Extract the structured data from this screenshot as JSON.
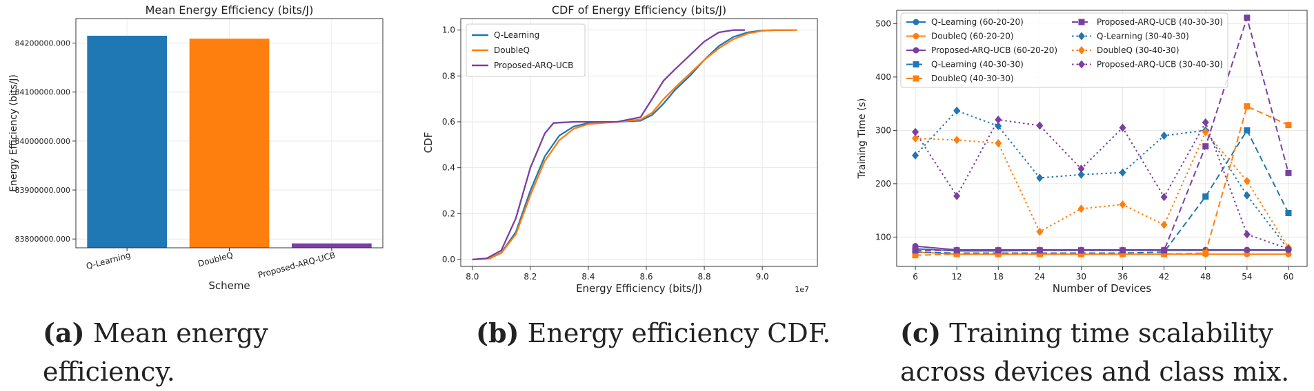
{
  "chart_data": [
    {
      "type": "bar",
      "title": "Mean Energy Efficiency (bits/J)",
      "xlabel": "Scheme",
      "ylabel": "Energy Efficiency (bits/J)",
      "categories": [
        "Q-Learning",
        "DoubleQ",
        "Proposed-ARQ-UCB"
      ],
      "values": [
        84215000,
        84209000,
        83791000
      ],
      "colors": [
        "#1f77b4",
        "#ff7f0e",
        "#7b3fa0"
      ],
      "ylim": [
        83782000,
        84250000
      ],
      "yticks": [
        83800000,
        83900000,
        84000000,
        84100000,
        84200000
      ],
      "ytick_labels": [
        "83800000.000",
        "83900000.000",
        "84000000.000",
        "84100000.000",
        "84200000.000"
      ],
      "grid": true
    },
    {
      "type": "line",
      "title": "CDF of Energy Efficiency (bits/J)",
      "xlabel": "Energy Efficiency (bits/J)",
      "ylabel": "CDF",
      "x_offset_label": "1e7",
      "xlim": [
        7.96,
        9.19
      ],
      "ylim": [
        -0.03,
        1.05
      ],
      "xticks": [
        8.0,
        8.2,
        8.4,
        8.6,
        8.8,
        9.0
      ],
      "xtick_labels": [
        "8.0",
        "8.2",
        "8.4",
        "8.6",
        "8.8",
        "9.0"
      ],
      "yticks": [
        0.0,
        0.2,
        0.4,
        0.6,
        0.8,
        1.0
      ],
      "ytick_labels": [
        "0.0",
        "0.2",
        "0.4",
        "0.6",
        "0.8",
        "1.0"
      ],
      "legend": "top-left",
      "grid": true,
      "series": [
        {
          "name": "Q-Learning",
          "color": "#1f77b4",
          "x": [
            8.0,
            8.06,
            8.1,
            8.15,
            8.2,
            8.25,
            8.3,
            8.35,
            8.4,
            8.5,
            8.58,
            8.62,
            8.66,
            8.7,
            8.75,
            8.8,
            8.85,
            8.9,
            8.95,
            9.0,
            9.05,
            9.1
          ],
          "y": [
            0.0,
            0.005,
            0.03,
            0.12,
            0.3,
            0.45,
            0.54,
            0.58,
            0.595,
            0.6,
            0.605,
            0.63,
            0.68,
            0.74,
            0.8,
            0.87,
            0.93,
            0.97,
            0.99,
            0.998,
            1.0,
            1.0
          ]
        },
        {
          "name": "DoubleQ",
          "color": "#ff7f0e",
          "x": [
            8.0,
            8.06,
            8.1,
            8.15,
            8.2,
            8.25,
            8.3,
            8.35,
            8.4,
            8.5,
            8.58,
            8.62,
            8.66,
            8.7,
            8.75,
            8.8,
            8.85,
            8.9,
            8.95,
            9.0,
            9.05,
            9.12
          ],
          "y": [
            0.0,
            0.005,
            0.028,
            0.11,
            0.28,
            0.43,
            0.52,
            0.57,
            0.59,
            0.6,
            0.61,
            0.64,
            0.7,
            0.75,
            0.81,
            0.87,
            0.92,
            0.96,
            0.985,
            0.997,
            1.0,
            1.0
          ]
        },
        {
          "name": "Proposed-ARQ-UCB",
          "color": "#7b3fa0",
          "x": [
            8.0,
            8.05,
            8.1,
            8.15,
            8.2,
            8.25,
            8.28,
            8.35,
            8.5,
            8.58,
            8.62,
            8.66,
            8.7,
            8.75,
            8.8,
            8.85,
            8.9,
            8.94
          ],
          "y": [
            0.0,
            0.005,
            0.04,
            0.18,
            0.4,
            0.55,
            0.595,
            0.6,
            0.6,
            0.62,
            0.7,
            0.78,
            0.83,
            0.89,
            0.95,
            0.99,
            1.0,
            1.0
          ]
        }
      ]
    },
    {
      "type": "line",
      "xlabel": "Number of Devices",
      "ylabel": "Training Time (s)",
      "x": [
        6,
        12,
        18,
        24,
        30,
        36,
        42,
        48,
        54,
        60
      ],
      "xlim": [
        3.3,
        62.7
      ],
      "ylim": [
        45,
        525
      ],
      "yticks": [
        100,
        200,
        300,
        400,
        500
      ],
      "ytick_labels": [
        "100",
        "200",
        "300",
        "400",
        "500"
      ],
      "xtick_labels": [
        "6",
        "12",
        "18",
        "24",
        "30",
        "36",
        "42",
        "48",
        "54",
        "60"
      ],
      "legend": "top-left, 2 columns",
      "grid": true,
      "series": [
        {
          "name": "Q-Learning (60-20-20)",
          "color": "#1f77b4",
          "style": "solid",
          "marker": "circle",
          "values": [
            78,
            74,
            74,
            75,
            75,
            75,
            75,
            75,
            75,
            75
          ]
        },
        {
          "name": "DoubleQ (60-20-20)",
          "color": "#ff7f0e",
          "style": "solid",
          "marker": "circle",
          "values": [
            72,
            68,
            68,
            68,
            68,
            68,
            68,
            68,
            68,
            68
          ]
        },
        {
          "name": "Proposed-ARQ-UCB (60-20-20)",
          "color": "#7b3fa0",
          "style": "solid",
          "marker": "circle",
          "values": [
            83,
            76,
            76,
            76,
            76,
            76,
            76,
            76,
            76,
            76
          ]
        },
        {
          "name": "Q-Learning (40-30-30)",
          "color": "#1f77b4",
          "style": "dashed",
          "marker": "square",
          "values": [
            72,
            70,
            70,
            70,
            70,
            70,
            72,
            176,
            300,
            145
          ]
        },
        {
          "name": "DoubleQ (40-30-30)",
          "color": "#ff7f0e",
          "style": "dashed",
          "marker": "square",
          "values": [
            66,
            68,
            68,
            68,
            68,
            68,
            68,
            70,
            345,
            310
          ]
        },
        {
          "name": "Proposed-ARQ-UCB (40-30-30)",
          "color": "#7b3fa0",
          "style": "dashed",
          "marker": "square",
          "values": [
            75,
            75,
            75,
            75,
            75,
            75,
            75,
            270,
            511,
            220
          ]
        },
        {
          "name": "Q-Learning (30-40-30)",
          "color": "#1f77b4",
          "style": "dotted",
          "marker": "diamond",
          "values": [
            253,
            337,
            308,
            211,
            217,
            221,
            290,
            300,
            178,
            77
          ]
        },
        {
          "name": "DoubleQ (30-40-30)",
          "color": "#ff7f0e",
          "style": "dotted",
          "marker": "diamond",
          "values": [
            285,
            282,
            276,
            110,
            153,
            161,
            123,
            297,
            205,
            80
          ]
        },
        {
          "name": "Proposed-ARQ-UCB (30-40-30)",
          "color": "#7b3fa0",
          "style": "dotted",
          "marker": "diamond",
          "values": [
            297,
            177,
            320,
            309,
            228,
            305,
            175,
            315,
            105,
            78
          ]
        }
      ]
    }
  ],
  "captions": [
    {
      "tag": "(a)",
      "text": "Mean energy efficiency."
    },
    {
      "tag": "(b)",
      "text": "Energy efficiency CDF."
    },
    {
      "tag": "(c)",
      "text": "Training time scalability across devices and class mix."
    }
  ]
}
